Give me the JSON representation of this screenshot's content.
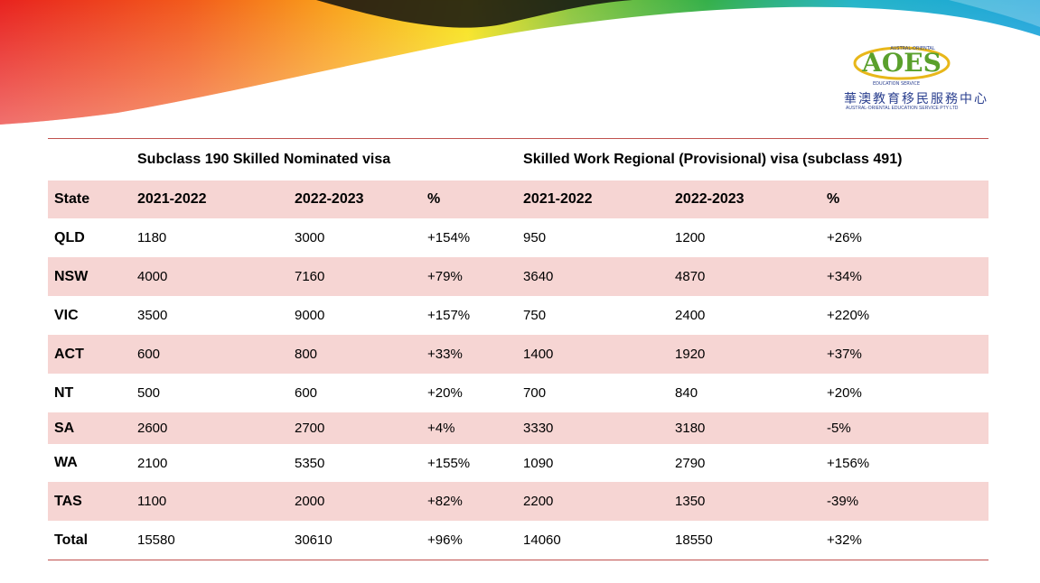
{
  "logo": {
    "brand_text": "AOES",
    "arc_top": "AUSTRAL-ORIENTAL",
    "arc_bottom": "EDUCATION SERVICE",
    "chinese_text": "華澳教育移民服務中心",
    "company_name": "AUSTRAL-ORIENTAL EDUCATION SERVICE PTY LTD",
    "colors": {
      "green": "#5aa02c",
      "gold": "#e8b71a",
      "blue": "#2a3f8f"
    }
  },
  "table": {
    "group_headers": [
      "Subclass 190 Skilled Nominated visa",
      "Skilled Work Regional (Provisional) visa (subclass 491)"
    ],
    "column_headers": [
      "State",
      "2021-2022",
      "2022-2023",
      "%",
      "2021-2022",
      "2022-2023",
      "%"
    ],
    "rows": [
      [
        "QLD",
        "1180",
        "3000",
        "+154%",
        "950",
        "1200",
        "+26%"
      ],
      [
        "NSW",
        "4000",
        "7160",
        "+79%",
        "3640",
        "4870",
        "+34%"
      ],
      [
        "VIC",
        "3500",
        "9000",
        "+157%",
        "750",
        "2400",
        "+220%"
      ],
      [
        "ACT",
        "600",
        "800",
        "+33%",
        "1400",
        "1920",
        "+37%"
      ],
      [
        "NT",
        "500",
        "600",
        "+20%",
        "700",
        "840",
        "+20%"
      ],
      [
        "SA",
        "2600",
        "2700",
        "+4%",
        "3330",
        "3180",
        "-5%"
      ],
      [
        "WA",
        "2100",
        "5350",
        "+155%",
        "1090",
        "2790",
        "+156%"
      ],
      [
        "TAS",
        "1100",
        "2000",
        "+82%",
        "2200",
        "1350",
        "-39%"
      ],
      [
        "Total",
        "15580",
        "30610",
        "+96%",
        "14060",
        "18550",
        "+32%"
      ]
    ],
    "colors": {
      "band": "#f6d5d3",
      "rule": "#c0504d"
    }
  }
}
